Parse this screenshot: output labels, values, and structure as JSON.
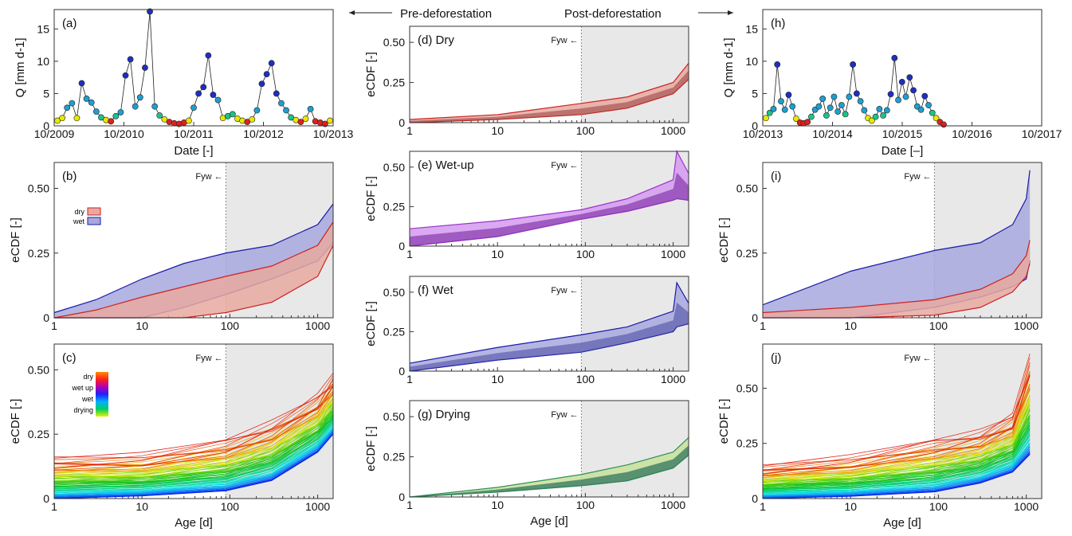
{
  "header": {
    "pre_label": "Pre-deforestation",
    "post_label": "Post-deforestation"
  },
  "colors": {
    "dry": "#cc2222",
    "wet": "#1a1aa8",
    "wetup": "#9a33c9",
    "drying": "#2f8f5a",
    "dryLight": "#e8a9a0",
    "wetLight": "#a7a8dd",
    "wetupLight": "#d49af0",
    "dryingLight": "#c8e09a",
    "shade": "#e8e8e8"
  },
  "chart_data": [
    {
      "id": "a",
      "type": "scatter",
      "panel_label": "(a)",
      "xlabel": "Date [-]",
      "ylabel": "Q [mm d-1]",
      "xticks": [
        "10/2009",
        "10/2010",
        "10/2011",
        "10/2012",
        "10/2013"
      ],
      "yticks": [
        "0",
        "5",
        "10",
        "15"
      ],
      "ylim": [
        0,
        18
      ],
      "series": [
        {
          "values": [
            0.8,
            1.2,
            2.8,
            3.5,
            1.2,
            6.6,
            4.2,
            3.6,
            2.2,
            1.3,
            0.9,
            0.7,
            1.5,
            2.1,
            7.8,
            10.3,
            3.0,
            4.4,
            9.0,
            17.7,
            3.0,
            1.6,
            1.0,
            0.6,
            0.4,
            0.3,
            0.5,
            0.8,
            2.8,
            5.0,
            6.0,
            10.9,
            4.8,
            4.0,
            1.2,
            1.5,
            1.8,
            1.1,
            0.8,
            0.6,
            1.0,
            2.4,
            6.5,
            8.0,
            9.7,
            5.0,
            3.5,
            2.4,
            1.3,
            0.9,
            0.6,
            1.1,
            2.6,
            0.7,
            0.5,
            0.3,
            0.8
          ]
        }
      ]
    },
    {
      "id": "h",
      "type": "scatter",
      "panel_label": "(h)",
      "xlabel": "Date [–]",
      "ylabel": "Q [mm d-1]",
      "xticks": [
        "10/2013",
        "10/2014",
        "10/2015",
        "10/2016",
        "10/2017"
      ],
      "yticks": [
        "0",
        "5",
        "10",
        "15"
      ],
      "ylim": [
        0,
        18
      ],
      "series": [
        {
          "values": [
            1.2,
            2.0,
            2.6,
            9.5,
            3.8,
            2.5,
            4.8,
            3.0,
            1.1,
            0.5,
            0.4,
            0.6,
            1.4,
            2.5,
            3.0,
            4.2,
            1.6,
            2.8,
            4.5,
            2.2,
            3.2,
            1.8,
            4.5,
            9.5,
            5.0,
            3.8,
            2.4,
            1.2,
            0.8,
            1.4,
            2.6,
            1.6,
            2.4,
            4.9,
            10.5,
            4.0,
            6.8,
            4.5,
            7.5,
            5.5,
            3.0,
            2.5,
            4.6,
            3.2,
            2.0,
            1.2,
            0.6,
            0.2
          ]
        }
      ]
    },
    {
      "id": "b",
      "type": "area",
      "panel_label": "(b)",
      "xlabel": "",
      "ylabel": "eCDF [-]",
      "xticks": [
        "1",
        "10",
        "100",
        "1000"
      ],
      "yticks": [
        "0",
        "0.25",
        "0.50"
      ],
      "ylim": [
        0,
        0.6
      ],
      "annotation": "Fyw ←",
      "legend": [
        "dry",
        "wet"
      ],
      "series": [
        {
          "name": "wet",
          "x": [
            1,
            3,
            10,
            30,
            90,
            300,
            1000,
            1500
          ],
          "upper": [
            0.02,
            0.07,
            0.15,
            0.21,
            0.25,
            0.28,
            0.36,
            0.44
          ],
          "lower": [
            0.0,
            0.0,
            0.0,
            0.04,
            0.09,
            0.15,
            0.22,
            0.29
          ]
        },
        {
          "name": "dry",
          "x": [
            1,
            3,
            10,
            30,
            90,
            300,
            1000,
            1500
          ],
          "upper": [
            0.0,
            0.03,
            0.08,
            0.12,
            0.16,
            0.2,
            0.28,
            0.37
          ],
          "lower": [
            0.0,
            0.0,
            0.0,
            0.0,
            0.02,
            0.06,
            0.16,
            0.28
          ]
        }
      ]
    },
    {
      "id": "c",
      "type": "line",
      "panel_label": "(c)",
      "xlabel": "Age [d]",
      "ylabel": "eCDF [-]",
      "xticks": [
        "1",
        "10",
        "100",
        "1000"
      ],
      "yticks": [
        "0",
        "0.25",
        "0.50"
      ],
      "ylim": [
        0,
        0.6
      ],
      "annotation": "Fyw ←",
      "legend": [
        "dry",
        "wet up",
        "wet",
        "drying"
      ],
      "series": [
        {
          "name": "",
          "x": [
            1,
            10,
            90,
            300,
            1000,
            1500
          ],
          "values": [
            0.17,
            0.18,
            0.24,
            0.31,
            0.42,
            0.5
          ]
        },
        {
          "name": "",
          "x": [
            1,
            10,
            90,
            300,
            1000,
            1500
          ],
          "values": [
            0.0,
            0.01,
            0.03,
            0.07,
            0.18,
            0.25
          ]
        }
      ]
    },
    {
      "id": "d",
      "type": "area",
      "panel_label": "(d) Dry",
      "xlabel": "",
      "ylabel": "eCDF [-]",
      "xticks": [
        "1",
        "10",
        "100",
        "1000"
      ],
      "yticks": [
        "0",
        "0.25",
        "0.50"
      ],
      "ylim": [
        0,
        0.6
      ],
      "annotation": "Fyw ←",
      "series": [
        {
          "name": "dry",
          "x": [
            1,
            10,
            90,
            300,
            1000,
            1500
          ],
          "upper": [
            0.02,
            0.05,
            0.12,
            0.16,
            0.25,
            0.37
          ],
          "lower": [
            0.0,
            0.02,
            0.05,
            0.09,
            0.18,
            0.27
          ]
        }
      ]
    },
    {
      "id": "e",
      "type": "area",
      "panel_label": "(e) Wet-up",
      "xlabel": "",
      "ylabel": "eCDF [-]",
      "xticks": [
        "1",
        "10",
        "100",
        "1000"
      ],
      "yticks": [
        "0",
        "0.25",
        "0.50"
      ],
      "ylim": [
        0,
        0.6
      ],
      "annotation": "Fyw ←",
      "series": [
        {
          "name": "wetup",
          "x": [
            1,
            10,
            90,
            300,
            1000,
            1100,
            1500
          ],
          "upper": [
            0.11,
            0.16,
            0.23,
            0.3,
            0.42,
            0.6,
            0.46
          ],
          "lower": [
            0.0,
            0.06,
            0.17,
            0.22,
            0.29,
            0.3,
            0.29
          ]
        }
      ]
    },
    {
      "id": "f",
      "type": "area",
      "panel_label": "(f) Wet",
      "xlabel": "",
      "ylabel": "eCDF [-]",
      "xticks": [
        "1",
        "10",
        "100",
        "1000"
      ],
      "yticks": [
        "0",
        "0.25",
        "0.50"
      ],
      "ylim": [
        0,
        0.6
      ],
      "annotation": "Fyw ←",
      "series": [
        {
          "name": "wet",
          "x": [
            1,
            10,
            90,
            300,
            1000,
            1100,
            1500
          ],
          "upper": [
            0.05,
            0.15,
            0.23,
            0.28,
            0.38,
            0.56,
            0.43
          ],
          "lower": [
            0.0,
            0.07,
            0.12,
            0.18,
            0.25,
            0.28,
            0.3
          ]
        }
      ]
    },
    {
      "id": "g",
      "type": "area",
      "panel_label": "(g) Drying",
      "xlabel": "Age [d]",
      "ylabel": "eCDF [-]",
      "xticks": [
        "1",
        "10",
        "100",
        "1000"
      ],
      "yticks": [
        "0",
        "0.25",
        "0.50"
      ],
      "ylim": [
        0,
        0.6
      ],
      "annotation": "Fyw ←",
      "series": [
        {
          "name": "drying",
          "x": [
            1,
            10,
            90,
            300,
            1000,
            1500
          ],
          "upper": [
            0.0,
            0.06,
            0.14,
            0.2,
            0.28,
            0.37
          ],
          "lower": [
            0.0,
            0.03,
            0.07,
            0.1,
            0.18,
            0.26
          ]
        }
      ]
    },
    {
      "id": "i",
      "type": "area",
      "panel_label": "(i)",
      "xlabel": "",
      "ylabel": "eCDF [-]",
      "xticks": [
        "1",
        "10",
        "100",
        "1000"
      ],
      "yticks": [
        "0",
        "0.25",
        "0.50"
      ],
      "ylim": [
        0,
        0.6
      ],
      "annotation": "Fyw ←",
      "series": [
        {
          "name": "wet",
          "x": [
            1,
            10,
            90,
            300,
            700,
            1000,
            1100
          ],
          "upper": [
            0.05,
            0.18,
            0.26,
            0.29,
            0.36,
            0.46,
            0.57
          ],
          "lower": [
            0.0,
            0.0,
            0.04,
            0.08,
            0.12,
            0.15,
            0.22
          ]
        },
        {
          "name": "dry",
          "x": [
            1,
            10,
            90,
            300,
            700,
            1000,
            1100
          ],
          "upper": [
            0.02,
            0.04,
            0.07,
            0.11,
            0.17,
            0.24,
            0.3
          ],
          "lower": [
            0.0,
            0.0,
            0.01,
            0.04,
            0.1,
            0.16,
            0.21
          ]
        }
      ]
    },
    {
      "id": "j",
      "type": "line",
      "panel_label": "(j)",
      "xlabel": "Age [d]",
      "ylabel": "eCDF [-]",
      "xticks": [
        "1",
        "10",
        "100",
        "1000"
      ],
      "yticks": [
        "0",
        "0.25",
        "0.50"
      ],
      "ylim": [
        0,
        0.7
      ],
      "annotation": "Fyw ←",
      "series": [
        {
          "name": "",
          "x": [
            1,
            10,
            90,
            300,
            700,
            1100
          ],
          "values": [
            0.16,
            0.2,
            0.28,
            0.32,
            0.4,
            0.68
          ]
        },
        {
          "name": "",
          "x": [
            1,
            10,
            90,
            300,
            700,
            1100
          ],
          "values": [
            0.0,
            0.01,
            0.03,
            0.07,
            0.12,
            0.2
          ]
        }
      ]
    }
  ]
}
